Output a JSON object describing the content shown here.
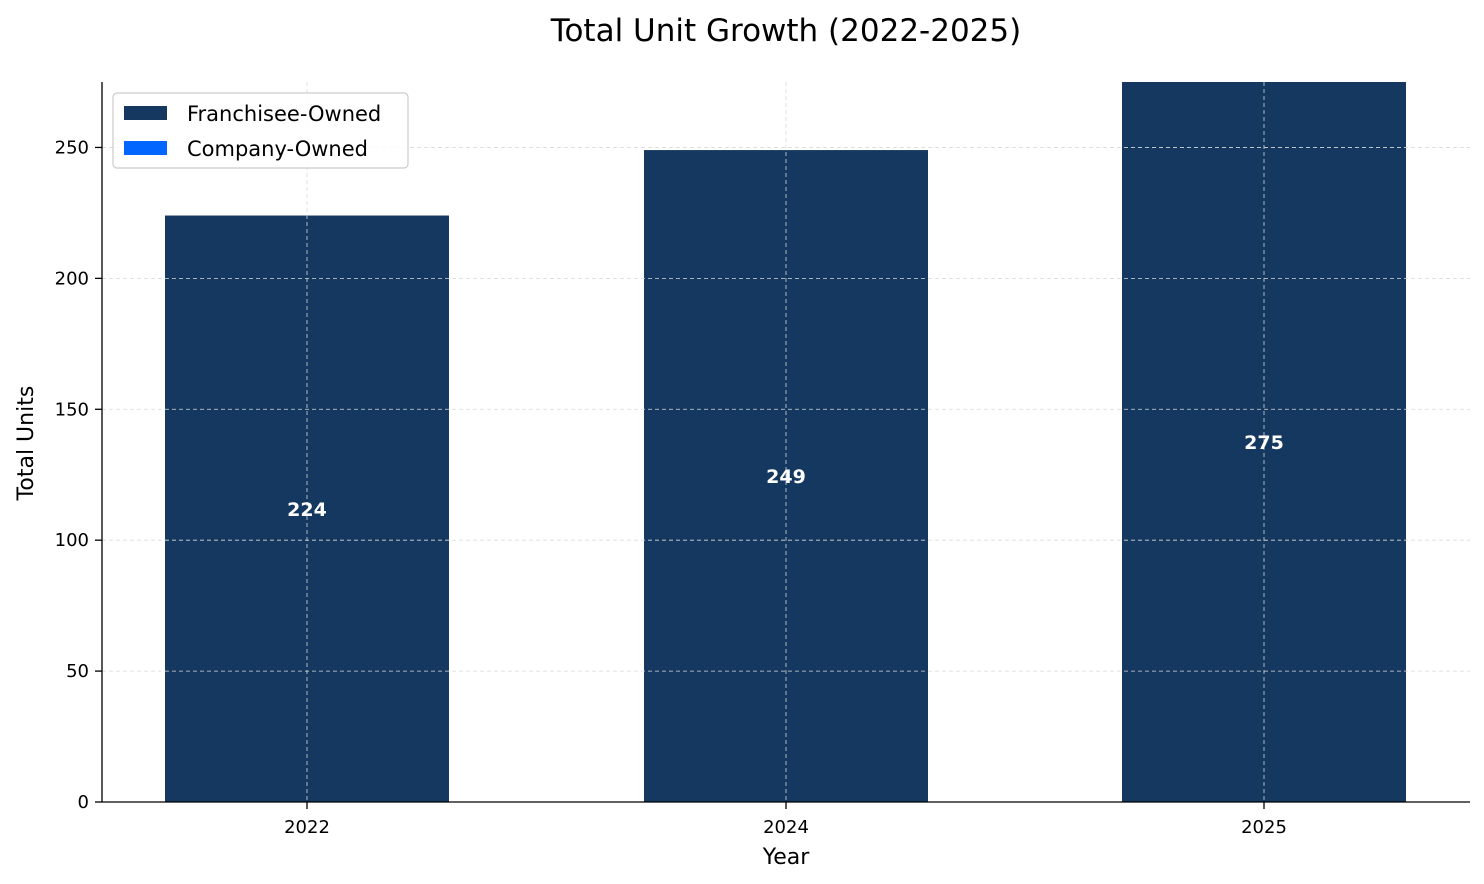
{
  "chart_data": {
    "type": "bar",
    "stacked": true,
    "title": "Total Unit Growth (2022-2025)",
    "xlabel": "Year",
    "ylabel": "Total Units",
    "categories": [
      "2022",
      "2024",
      "2025"
    ],
    "series": [
      {
        "name": "Franchisee-Owned",
        "color": "#14385f",
        "values": [
          224,
          249,
          275
        ]
      },
      {
        "name": "Company-Owned",
        "color": "#0066ff",
        "values": [
          0,
          0,
          0
        ]
      }
    ],
    "totals": [
      "224",
      "249",
      "275"
    ],
    "ylim": [
      0,
      275
    ],
    "yticks": [
      0,
      50,
      100,
      150,
      200,
      250
    ],
    "grid": true,
    "legend_position": "top-left"
  }
}
